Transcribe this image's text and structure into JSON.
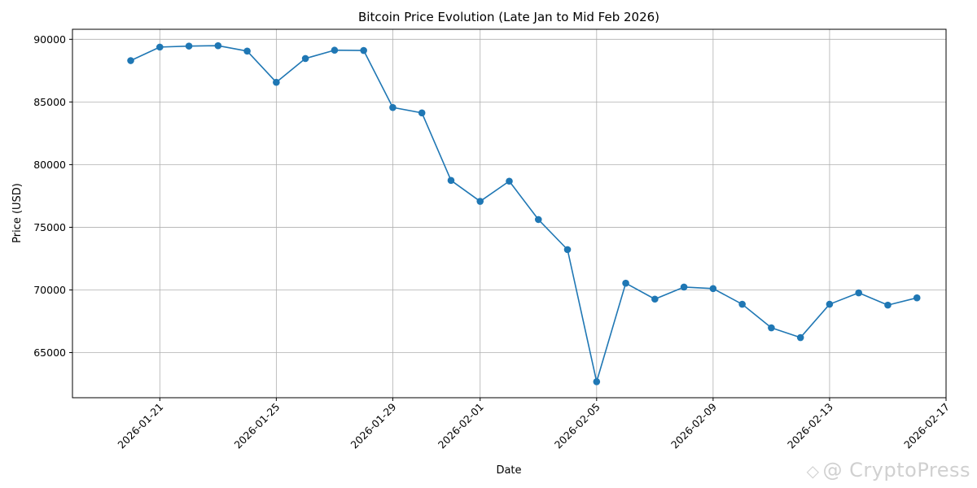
{
  "chart_data": {
    "type": "line",
    "title": "Bitcoin Price Evolution (Late Jan to Mid Feb 2026)",
    "xlabel": "Date",
    "ylabel": "Price (USD)",
    "x": [
      "2026-01-20",
      "2026-01-21",
      "2026-01-22",
      "2026-01-23",
      "2026-01-24",
      "2026-01-25",
      "2026-01-26",
      "2026-01-27",
      "2026-01-28",
      "2026-01-29",
      "2026-01-30",
      "2026-01-31",
      "2026-02-01",
      "2026-02-02",
      "2026-02-03",
      "2026-02-04",
      "2026-02-05",
      "2026-02-06",
      "2026-02-07",
      "2026-02-08",
      "2026-02-09",
      "2026-02-10",
      "2026-02-11",
      "2026-02-12",
      "2026-02-13",
      "2026-02-14",
      "2026-02-15",
      "2026-02-16"
    ],
    "series": [
      {
        "values": [
          88300,
          89380,
          89460,
          89490,
          89060,
          86570,
          88470,
          89130,
          89110,
          84560,
          84130,
          78740,
          77070,
          78680,
          75620,
          73220,
          62680,
          70540,
          69270,
          70230,
          70110,
          68860,
          66980,
          66200,
          68860,
          69770,
          68790,
          69370
        ]
      }
    ],
    "xticks": [
      "2026-01-21",
      "2026-01-25",
      "2026-01-29",
      "2026-02-01",
      "2026-02-05",
      "2026-02-09",
      "2026-02-13",
      "2026-02-17"
    ],
    "yticks": [
      65000,
      70000,
      75000,
      80000,
      85000,
      90000
    ],
    "xlim": [
      "2026-01-18",
      "2026-02-17"
    ],
    "ylim": [
      61400,
      90800
    ],
    "grid": true,
    "color": "#1f77b4"
  },
  "watermark": {
    "icon": "diamond-logo-icon",
    "text": "@ CryptoPress"
  }
}
